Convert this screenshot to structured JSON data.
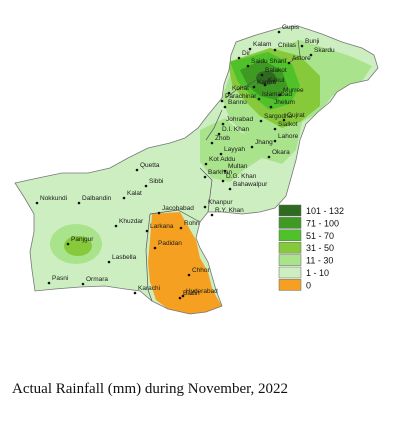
{
  "caption": "Actual Rainfall (mm) during November, 2022",
  "legend": [
    {
      "label": "101 - 132",
      "color": "#2e6b1f"
    },
    {
      "label": "71 - 100",
      "color": "#3f9a24"
    },
    {
      "label": "51 - 70",
      "color": "#4fc12a"
    },
    {
      "label": "31 - 50",
      "color": "#86c93a"
    },
    {
      "label": "11 - 30",
      "color": "#a9e38c"
    },
    {
      "label": "1 - 10",
      "color": "#cdeec1"
    },
    {
      "label": "0",
      "color": "#f5a020"
    }
  ],
  "cities": [
    "Gupis",
    "Bunji",
    "Kalam",
    "Chilas",
    "Skardu",
    "Dir",
    "Saidu Sharif",
    "Astore",
    "Balakot",
    "Kakul",
    "Kohat",
    "Kamra",
    "Murree",
    "Parachinar",
    "Islamabad",
    "Jhelum",
    "Bannu",
    "Sargodha",
    "Sialkot",
    "Johrabad",
    "D.I. Khan",
    "Gujrat",
    "Zhob",
    "Jhang",
    "Lahore",
    "Layyah",
    "Okara",
    "Quetta",
    "Kot Addu",
    "Multan",
    "D.G. Khan",
    "Barkhan",
    "Bahawalpur",
    "Nokkundi",
    "Dalbandin",
    "Sibbi",
    "Kalat",
    "Khanpur",
    "R.Y. Khan",
    "Jacobabad",
    "Khuzdar",
    "Larkana",
    "Rohri",
    "Panjgur",
    "Padidan",
    "Lasbella",
    "Chhor",
    "Hyderabad",
    "Pasni",
    "Ormara",
    "Karachi",
    "Badin"
  ]
}
